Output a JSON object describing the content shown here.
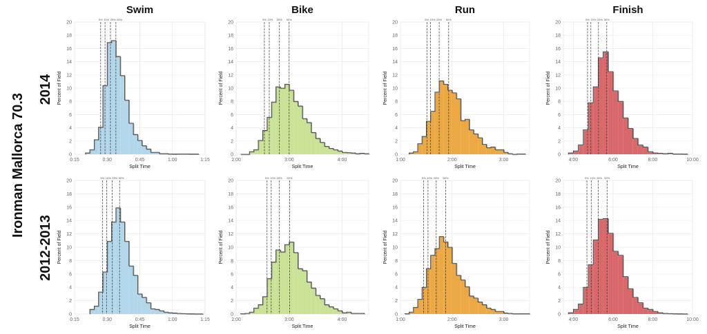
{
  "figure": {
    "main_label": "Ironman Mallorca 70.3",
    "row_labels": [
      "2014",
      "2012-2013"
    ]
  },
  "chart_data": [
    {
      "type": "bar",
      "title": "Swim",
      "row": "2014",
      "xlabel": "Split Time",
      "ylabel": "Percent of Field",
      "color": "#b3d7ea",
      "xlim": [
        15,
        75
      ],
      "ylim": [
        0,
        20
      ],
      "grid": true,
      "bin_width": 2,
      "bin_starts": [
        20,
        22,
        24,
        26,
        28,
        30,
        32,
        34,
        36,
        38,
        40,
        42,
        44,
        46,
        48,
        50,
        52,
        54,
        56,
        58,
        60,
        62,
        64,
        66,
        68,
        70
      ],
      "values": [
        0.2,
        0.7,
        2.2,
        4.1,
        10.4,
        16.9,
        17.2,
        14.8,
        11.9,
        8.2,
        4.7,
        3.0,
        2.1,
        1.3,
        0.8,
        0.3,
        0.3,
        0.1,
        0.1,
        0.05,
        0.03,
        0.05,
        0.05,
        0.05,
        0.03,
        0.03
      ],
      "percentiles": [
        {
          "label": "5%",
          "value": 27
        },
        {
          "label": "10%",
          "value": 29
        },
        {
          "label": "25%",
          "value": 31.5
        },
        {
          "label": "50%",
          "value": 34
        }
      ],
      "xticks": [
        {
          "value": 15,
          "label": "0:15"
        },
        {
          "value": 30,
          "label": "0:30"
        },
        {
          "value": 45,
          "label": "0:45"
        },
        {
          "value": 60,
          "label": "1:00"
        },
        {
          "value": 75,
          "label": "1:15"
        }
      ]
    },
    {
      "type": "bar",
      "title": "Bike",
      "row": "2014",
      "xlabel": "Split Time",
      "ylabel": "Percent of Field",
      "color": "#c9e295",
      "xlim": [
        120,
        270
      ],
      "ylim": [
        0,
        20
      ],
      "grid": true,
      "bin_width": 5,
      "bin_starts": [
        125,
        130,
        135,
        140,
        145,
        150,
        155,
        160,
        165,
        170,
        175,
        180,
        185,
        190,
        195,
        200,
        205,
        210,
        215,
        220,
        225,
        230,
        235,
        240,
        245,
        250,
        255,
        260,
        265
      ],
      "values": [
        0,
        0,
        0.4,
        0.7,
        2.1,
        3.6,
        5.6,
        7.9,
        10.2,
        10.0,
        10.6,
        9.7,
        8.0,
        7.3,
        5.4,
        4.8,
        3.3,
        2.4,
        1.8,
        1.2,
        0.9,
        0.7,
        0.5,
        0.3,
        0.25,
        0.2,
        0.1,
        0.15,
        0.1
      ],
      "percentiles": [
        {
          "label": "5%",
          "value": 152
        },
        {
          "label": "10%",
          "value": 157.5
        },
        {
          "label": "25%",
          "value": 169
        },
        {
          "label": "50%",
          "value": 180
        }
      ],
      "xticks": [
        {
          "value": 120,
          "label": "2:00"
        },
        {
          "value": 180,
          "label": "3:00"
        },
        {
          "value": 240,
          "label": "4:00"
        }
      ]
    },
    {
      "type": "bar",
      "title": "Run",
      "row": "2014",
      "xlabel": "Split Time",
      "ylabel": "Percent of Field",
      "color": "#eba843",
      "xlim": [
        60,
        210
      ],
      "ylim": [
        0,
        20
      ],
      "grid": true,
      "bin_width": 5,
      "bin_starts": [
        70,
        75,
        80,
        85,
        90,
        95,
        100,
        105,
        110,
        115,
        120,
        125,
        130,
        135,
        140,
        145,
        150,
        155,
        160,
        165,
        170,
        175,
        180,
        185,
        190,
        195,
        200
      ],
      "values": [
        0.2,
        0.4,
        1.6,
        2.7,
        5.0,
        6.5,
        9.4,
        11.1,
        10.6,
        9.7,
        9.3,
        8.4,
        5.1,
        5.3,
        3.7,
        3.1,
        2.5,
        1.5,
        1.0,
        1.1,
        0.7,
        0.7,
        0.3,
        0.1,
        0,
        0.05,
        0.05
      ],
      "percentiles": [
        {
          "label": "5%",
          "value": 90.7
        },
        {
          "label": "10%",
          "value": 95
        },
        {
          "label": "25%",
          "value": 105
        },
        {
          "label": "50%",
          "value": 116
        }
      ],
      "xticks": [
        {
          "value": 60,
          "label": "1:00"
        },
        {
          "value": 120,
          "label": "2:00"
        },
        {
          "value": 180,
          "label": "3:00"
        }
      ]
    },
    {
      "type": "bar",
      "title": "Finish",
      "row": "2014",
      "xlabel": "Split Time",
      "ylabel": "Percent of Field",
      "color": "#d9686a",
      "xlim": [
        210,
        600
      ],
      "ylim": [
        0,
        20
      ],
      "grid": true,
      "bin_width": 15,
      "bin_starts": [
        225,
        240,
        255,
        270,
        285,
        300,
        315,
        330,
        345,
        360,
        375,
        390,
        405,
        420,
        435,
        450,
        465,
        480,
        495,
        510,
        525,
        540,
        555,
        570
      ],
      "values": [
        0.2,
        0.5,
        1.4,
        3.7,
        7.8,
        10.2,
        14.6,
        15.5,
        12.5,
        9.6,
        8.0,
        5.5,
        3.9,
        2.4,
        1.4,
        1.1,
        0.4,
        0.2,
        0.15,
        0.1,
        0.15,
        0.05,
        0.05,
        0.03
      ],
      "percentiles": [
        {
          "label": "5%",
          "value": 283
        },
        {
          "label": "10%",
          "value": 293
        },
        {
          "label": "25%",
          "value": 316
        },
        {
          "label": "50%",
          "value": 341
        }
      ],
      "xticks": [
        {
          "value": 240,
          "label": "4:00"
        },
        {
          "value": 360,
          "label": "6:00"
        },
        {
          "value": 480,
          "label": "8:00"
        },
        {
          "value": 600,
          "label": "10:00"
        }
      ]
    },
    {
      "type": "bar",
      "title": "",
      "row": "2012-2013",
      "xlabel": "Split Time",
      "ylabel": "Percent of Field",
      "color": "#b3d7ea",
      "xlim": [
        15,
        75
      ],
      "ylim": [
        0,
        20
      ],
      "grid": true,
      "bin_width": 2,
      "bin_starts": [
        22,
        24,
        26,
        28,
        30,
        32,
        34,
        36,
        38,
        40,
        42,
        44,
        46,
        48,
        50,
        52,
        54,
        56,
        58,
        60,
        62,
        64,
        66,
        68,
        70,
        72
      ],
      "values": [
        0.7,
        1.2,
        3.3,
        6.3,
        10.9,
        13.8,
        15.9,
        13.8,
        10.9,
        7.2,
        5.8,
        3.0,
        2.5,
        1.7,
        0.8,
        0.7,
        0.5,
        0.3,
        0.2,
        0.15,
        0.1,
        0.08,
        0.05,
        0.03,
        0.02,
        0.02
      ],
      "percentiles": [
        {
          "label": "5%",
          "value": 27.8
        },
        {
          "label": "10%",
          "value": 29.7
        },
        {
          "label": "25%",
          "value": 32.3
        },
        {
          "label": "50%",
          "value": 35.7
        }
      ],
      "xticks": [
        {
          "value": 15,
          "label": "0:15"
        },
        {
          "value": 30,
          "label": "0:30"
        },
        {
          "value": 45,
          "label": "0:45"
        },
        {
          "value": 60,
          "label": "1:00"
        },
        {
          "value": 75,
          "label": "1:15"
        }
      ]
    },
    {
      "type": "bar",
      "title": "",
      "row": "2012-2013",
      "xlabel": "Split Time",
      "ylabel": "Percent of Field",
      "color": "#c9e295",
      "xlim": [
        120,
        270
      ],
      "ylim": [
        0,
        20
      ],
      "grid": true,
      "bin_width": 5,
      "bin_starts": [
        125,
        130,
        135,
        140,
        145,
        150,
        155,
        160,
        165,
        170,
        175,
        180,
        185,
        190,
        195,
        200,
        205,
        210,
        215,
        220,
        225,
        230,
        235,
        240,
        245,
        250,
        255,
        260
      ],
      "values": [
        0.05,
        0.1,
        0.3,
        0.9,
        1.4,
        2.6,
        5.3,
        7.8,
        9.6,
        9.3,
        10.4,
        10.8,
        9.2,
        6.8,
        6.5,
        4.8,
        3.9,
        2.8,
        2.3,
        1.4,
        1.1,
        0.8,
        0.5,
        0.2,
        0.3,
        0.1,
        0.1,
        0.1
      ],
      "percentiles": [
        {
          "label": "5%",
          "value": 155
        },
        {
          "label": "10%",
          "value": 159.7
        },
        {
          "label": "25%",
          "value": 169
        },
        {
          "label": "50%",
          "value": 180.5
        }
      ],
      "xticks": [
        {
          "value": 120,
          "label": "2:00"
        },
        {
          "value": 180,
          "label": "3:00"
        },
        {
          "value": 240,
          "label": "4:00"
        }
      ]
    },
    {
      "type": "bar",
      "title": "",
      "row": "2012-2013",
      "xlabel": "Split Time",
      "ylabel": "Percent of Field",
      "color": "#eba843",
      "xlim": [
        60,
        210
      ],
      "ylim": [
        0,
        20
      ],
      "grid": true,
      "bin_width": 5,
      "bin_starts": [
        65,
        70,
        75,
        80,
        85,
        90,
        95,
        100,
        105,
        110,
        115,
        120,
        125,
        130,
        135,
        140,
        145,
        150,
        155,
        160,
        165,
        170,
        175,
        180,
        185,
        190,
        195,
        200,
        205
      ],
      "values": [
        0.05,
        0.3,
        1.0,
        2.2,
        4.0,
        6.8,
        8.8,
        9.8,
        11.6,
        10.8,
        10.0,
        7.6,
        5.8,
        5.1,
        4.1,
        2.7,
        2.4,
        1.8,
        1.4,
        0.9,
        0.7,
        0.4,
        0.4,
        0.15,
        0.1,
        0.05,
        0.05,
        0.05,
        0.05
      ],
      "percentiles": [
        {
          "label": "5%",
          "value": 87
        },
        {
          "label": "10%",
          "value": 92
        },
        {
          "label": "25%",
          "value": 101.6
        },
        {
          "label": "50%",
          "value": 112.5
        }
      ],
      "xticks": [
        {
          "value": 60,
          "label": "1:00"
        },
        {
          "value": 120,
          "label": "2:00"
        },
        {
          "value": 180,
          "label": "3:00"
        }
      ]
    },
    {
      "type": "bar",
      "title": "",
      "row": "2012-2013",
      "xlabel": "Split Time",
      "ylabel": "Percent of Field",
      "color": "#d9686a",
      "xlim": [
        210,
        600
      ],
      "ylim": [
        0,
        20
      ],
      "grid": true,
      "bin_width": 15,
      "bin_starts": [
        225,
        240,
        255,
        270,
        285,
        300,
        315,
        330,
        345,
        360,
        375,
        390,
        405,
        420,
        435,
        450,
        465,
        480,
        495,
        510,
        525,
        540,
        555,
        570
      ],
      "values": [
        0.2,
        0.7,
        1.5,
        4.0,
        7.4,
        11.1,
        14.2,
        14.3,
        12.1,
        9.4,
        8.8,
        5.6,
        3.8,
        2.5,
        1.7,
        0.9,
        0.7,
        0.4,
        0.2,
        0.1,
        0.08,
        0.05,
        0.03,
        0.02
      ],
      "percentiles": [
        {
          "label": "5%",
          "value": 281
        },
        {
          "label": "10%",
          "value": 294
        },
        {
          "label": "25%",
          "value": 315
        },
        {
          "label": "50%",
          "value": 342
        }
      ],
      "xticks": [
        {
          "value": 240,
          "label": "4:00"
        },
        {
          "value": 360,
          "label": "6:00"
        },
        {
          "value": 480,
          "label": "8:00"
        },
        {
          "value": 600,
          "label": "10:00"
        }
      ]
    }
  ]
}
